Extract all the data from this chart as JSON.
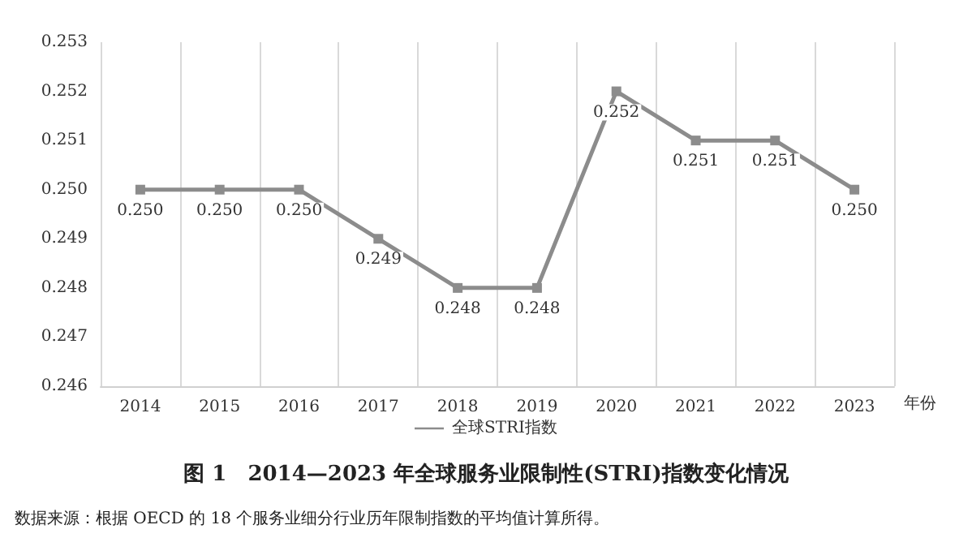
{
  "chart_data": {
    "type": "line",
    "title": "图 1　2014—2023 年全球服务业限制性(STRI)指数变化情况",
    "xlabel": "年份",
    "annotations": [
      "数据来源：根据 OECD 的 18 个服务业细分行业历年限制指数的平均值计算所得。"
    ],
    "categories": [
      "2014",
      "2015",
      "2016",
      "2017",
      "2018",
      "2019",
      "2020",
      "2021",
      "2022",
      "2023"
    ],
    "series": [
      {
        "name": "全球STRI指数",
        "color": "#8c8c8c",
        "values": [
          0.25,
          0.25,
          0.25,
          0.249,
          0.248,
          0.248,
          0.252,
          0.251,
          0.251,
          0.25
        ],
        "value_labels": [
          "0.250",
          "0.250",
          "0.250",
          "0.249",
          "0.248",
          "0.248",
          "0.252",
          "0.251",
          "0.251",
          "0.250"
        ]
      }
    ],
    "ylim": [
      0.246,
      0.253
    ],
    "yticks": [
      {
        "value": 0.246,
        "label": "0.246"
      },
      {
        "value": 0.247,
        "label": "0.247"
      },
      {
        "value": 0.248,
        "label": "0.248"
      },
      {
        "value": 0.249,
        "label": "0.249"
      },
      {
        "value": 0.25,
        "label": "0.250"
      },
      {
        "value": 0.251,
        "label": "0.251"
      },
      {
        "value": 0.252,
        "label": "0.252"
      },
      {
        "value": 0.253,
        "label": "0.253"
      }
    ],
    "grid": "x",
    "legend": "bottom",
    "marker": "square",
    "line_style": "solid"
  }
}
